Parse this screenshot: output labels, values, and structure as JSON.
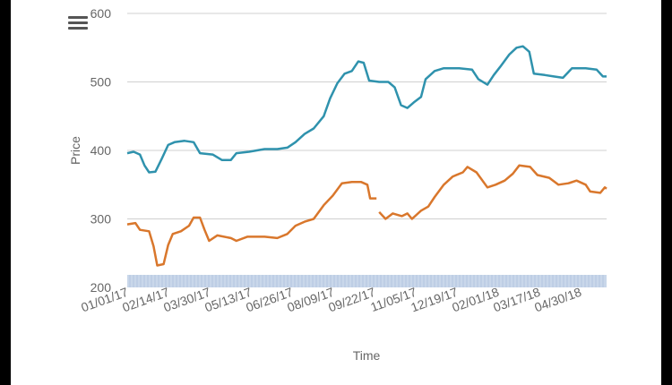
{
  "colors": {
    "grid": "#d0d0d0",
    "navigator": "#c9d7ea",
    "series_a": "#2f92ad",
    "series_b": "#d9772c",
    "text": "#666666"
  },
  "menu": {
    "icon": "hamburger-menu-icon"
  },
  "chart_data": {
    "type": "line",
    "xlabel": "Time",
    "ylabel": "Price",
    "ylim": [
      200,
      600
    ],
    "yticks": [
      200,
      300,
      400,
      500,
      600
    ],
    "xlim": [
      "2017-01-01",
      "2018-06-12"
    ],
    "xtick_labels": [
      "01/01/17",
      "02/14/17",
      "03/30/17",
      "05/13/17",
      "06/26/17",
      "08/09/17",
      "09/22/17",
      "11/05/17",
      "12/19/17",
      "02/01/18",
      "03/17/18",
      "04/30/18"
    ],
    "grid": true,
    "legend": "none",
    "series": [
      {
        "color": "#2f92ad",
        "points": [
          [
            "2017-01-01",
            396
          ],
          [
            "2017-01-08",
            398
          ],
          [
            "2017-01-15",
            394
          ],
          [
            "2017-01-20",
            378
          ],
          [
            "2017-01-25",
            368
          ],
          [
            "2017-02-01",
            369
          ],
          [
            "2017-02-08",
            388
          ],
          [
            "2017-02-15",
            408
          ],
          [
            "2017-02-22",
            412
          ],
          [
            "2017-03-05",
            414
          ],
          [
            "2017-03-15",
            412
          ],
          [
            "2017-03-22",
            396
          ],
          [
            "2017-04-05",
            394
          ],
          [
            "2017-04-15",
            386
          ],
          [
            "2017-04-25",
            386
          ],
          [
            "2017-05-01",
            396
          ],
          [
            "2017-05-15",
            398
          ],
          [
            "2017-06-01",
            402
          ],
          [
            "2017-06-15",
            402
          ],
          [
            "2017-06-26",
            404
          ],
          [
            "2017-07-05",
            412
          ],
          [
            "2017-07-15",
            424
          ],
          [
            "2017-07-25",
            432
          ],
          [
            "2017-08-05",
            450
          ],
          [
            "2017-08-12",
            476
          ],
          [
            "2017-08-20",
            498
          ],
          [
            "2017-08-28",
            512
          ],
          [
            "2017-09-05",
            516
          ],
          [
            "2017-09-12",
            530
          ],
          [
            "2017-09-18",
            528
          ],
          [
            "2017-09-24",
            502
          ],
          [
            "2017-10-05",
            500
          ],
          [
            "2017-10-15",
            500
          ],
          [
            "2017-10-22",
            492
          ],
          [
            "2017-10-29",
            466
          ],
          [
            "2017-11-05",
            462
          ],
          [
            "2017-11-12",
            470
          ],
          [
            "2017-11-20",
            478
          ],
          [
            "2017-11-25",
            504
          ],
          [
            "2017-12-05",
            516
          ],
          [
            "2017-12-15",
            520
          ],
          [
            "2018-01-01",
            520
          ],
          [
            "2018-01-15",
            518
          ],
          [
            "2018-01-22",
            504
          ],
          [
            "2018-02-01",
            496
          ],
          [
            "2018-02-08",
            510
          ],
          [
            "2018-02-15",
            522
          ],
          [
            "2018-02-25",
            540
          ],
          [
            "2018-03-05",
            550
          ],
          [
            "2018-03-12",
            552
          ],
          [
            "2018-03-19",
            544
          ],
          [
            "2018-03-24",
            512
          ],
          [
            "2018-04-05",
            510
          ],
          [
            "2018-04-15",
            508
          ],
          [
            "2018-04-25",
            506
          ],
          [
            "2018-05-05",
            520
          ],
          [
            "2018-05-20",
            520
          ],
          [
            "2018-06-01",
            518
          ],
          [
            "2018-06-08",
            508
          ],
          [
            "2018-06-12",
            508
          ]
        ]
      },
      {
        "color": "#d9772c",
        "points": [
          [
            "2017-01-01",
            292
          ],
          [
            "2017-01-10",
            294
          ],
          [
            "2017-01-15",
            284
          ],
          [
            "2017-01-25",
            282
          ],
          [
            "2017-01-30",
            260
          ],
          [
            "2017-02-03",
            232
          ],
          [
            "2017-02-10",
            234
          ],
          [
            "2017-02-15",
            262
          ],
          [
            "2017-02-20",
            278
          ],
          [
            "2017-03-01",
            282
          ],
          [
            "2017-03-10",
            290
          ],
          [
            "2017-03-15",
            302
          ],
          [
            "2017-03-22",
            302
          ],
          [
            "2017-03-27",
            284
          ],
          [
            "2017-04-01",
            268
          ],
          [
            "2017-04-10",
            276
          ],
          [
            "2017-04-25",
            272
          ],
          [
            "2017-05-01",
            268
          ],
          [
            "2017-05-13",
            274
          ],
          [
            "2017-06-01",
            274
          ],
          [
            "2017-06-15",
            272
          ],
          [
            "2017-06-26",
            278
          ],
          [
            "2017-07-05",
            290
          ],
          [
            "2017-07-15",
            296
          ],
          [
            "2017-07-25",
            300
          ],
          [
            "2017-08-05",
            320
          ],
          [
            "2017-08-15",
            334
          ],
          [
            "2017-08-25",
            352
          ],
          [
            "2017-09-05",
            354
          ],
          [
            "2017-09-15",
            354
          ],
          [
            "2017-09-22",
            350
          ],
          [
            "2017-09-25",
            330
          ],
          [
            "2017-10-02",
            330
          ],
          null,
          [
            "2017-10-05",
            310
          ],
          [
            "2017-10-12",
            300
          ],
          [
            "2017-10-20",
            308
          ],
          [
            "2017-10-30",
            304
          ],
          [
            "2017-11-05",
            308
          ],
          [
            "2017-11-10",
            300
          ],
          [
            "2017-11-20",
            312
          ],
          [
            "2017-11-28",
            318
          ],
          [
            "2017-12-05",
            332
          ],
          [
            "2017-12-15",
            350
          ],
          [
            "2017-12-25",
            362
          ],
          [
            "2018-01-05",
            368
          ],
          [
            "2018-01-10",
            376
          ],
          [
            "2018-01-20",
            368
          ],
          [
            "2018-02-01",
            346
          ],
          [
            "2018-02-10",
            350
          ],
          [
            "2018-02-20",
            356
          ],
          [
            "2018-03-01",
            366
          ],
          [
            "2018-03-08",
            378
          ],
          [
            "2018-03-20",
            376
          ],
          [
            "2018-03-28",
            364
          ],
          [
            "2018-04-10",
            360
          ],
          [
            "2018-04-20",
            350
          ],
          [
            "2018-05-01",
            352
          ],
          [
            "2018-05-10",
            356
          ],
          [
            "2018-05-20",
            350
          ],
          [
            "2018-05-25",
            340
          ],
          [
            "2018-06-05",
            338
          ],
          [
            "2018-06-10",
            346
          ],
          [
            "2018-06-12",
            344
          ]
        ]
      }
    ]
  }
}
